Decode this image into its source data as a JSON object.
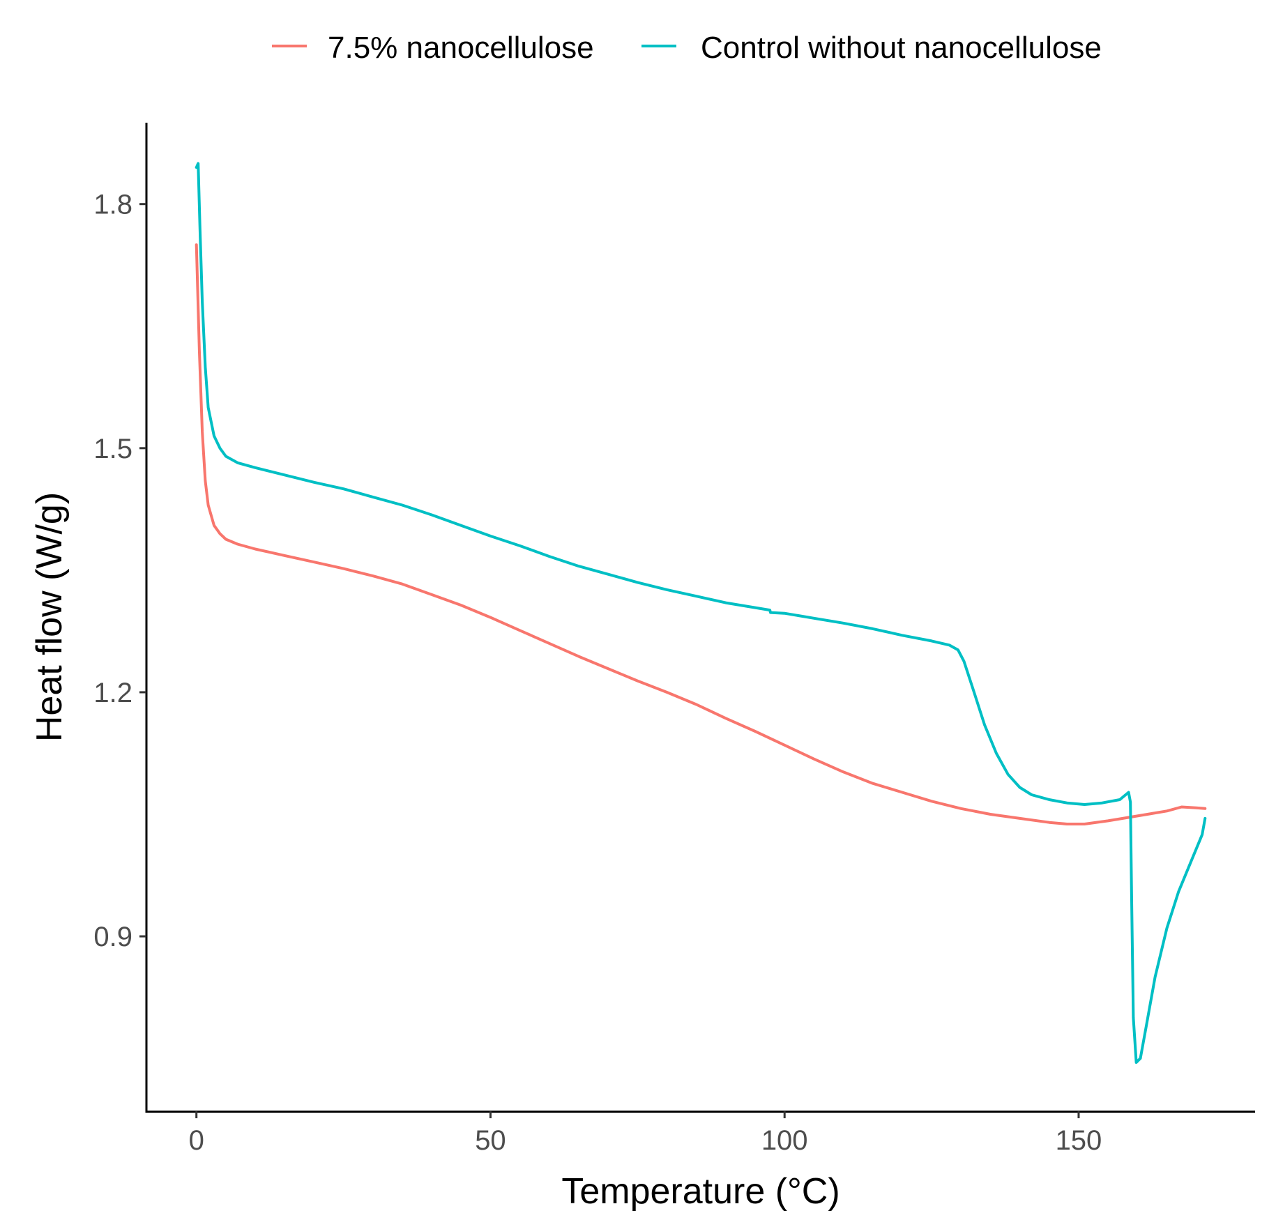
{
  "chart_data": {
    "type": "line",
    "title": "",
    "xlabel": "Temperature (°C)",
    "ylabel": "Heat flow (W/g)",
    "xlim": [
      -8.5,
      180
    ],
    "ylim": [
      0.685,
      1.9
    ],
    "xticks": [
      0,
      50,
      100,
      150
    ],
    "xtick_labels": [
      "0",
      "50",
      "100",
      "150"
    ],
    "yticks": [
      0.9,
      1.2,
      1.5,
      1.8
    ],
    "ytick_labels": [
      "0.9",
      "1.2",
      "1.5",
      "1.8"
    ],
    "grid": false,
    "legend_position": "top",
    "series": [
      {
        "name": "7.5% nanocellulose",
        "color": "#F8766D",
        "x": [
          0,
          0.5,
          1,
          1.5,
          2,
          3,
          4,
          5,
          7,
          10,
          15,
          20,
          25,
          30,
          35,
          40,
          45,
          50,
          55,
          60,
          65,
          70,
          75,
          80,
          85,
          90,
          95,
          100,
          105,
          110,
          115,
          120,
          125,
          130,
          135,
          140,
          145,
          148,
          151,
          155,
          160,
          165,
          167.5,
          170,
          171.5
        ],
        "values": [
          1.75,
          1.62,
          1.52,
          1.46,
          1.43,
          1.405,
          1.395,
          1.388,
          1.382,
          1.376,
          1.368,
          1.36,
          1.352,
          1.343,
          1.333,
          1.32,
          1.307,
          1.292,
          1.276,
          1.26,
          1.244,
          1.229,
          1.214,
          1.2,
          1.185,
          1.168,
          1.152,
          1.135,
          1.118,
          1.102,
          1.088,
          1.077,
          1.066,
          1.057,
          1.05,
          1.045,
          1.04,
          1.038,
          1.038,
          1.042,
          1.048,
          1.054,
          1.059,
          1.058,
          1.057
        ]
      },
      {
        "name": "Control without nanocellulose",
        "color": "#00BFC4",
        "x": [
          0,
          0.3,
          0.6,
          1,
          1.5,
          2,
          3,
          4,
          5,
          7,
          10,
          15,
          20,
          25,
          30,
          35,
          40,
          45,
          50,
          55,
          60,
          65,
          70,
          75,
          80,
          85,
          90,
          95,
          97.5,
          97.6,
          100,
          105,
          110,
          115,
          120,
          125,
          128,
          129.5,
          130.5,
          132,
          134,
          136,
          138,
          140,
          142,
          145,
          148,
          151,
          154,
          157,
          158.5,
          158.8,
          159,
          159.3,
          159.8,
          160.5,
          161.5,
          163,
          165,
          167,
          169,
          171,
          171.5
        ],
        "values": [
          1.845,
          1.85,
          1.77,
          1.68,
          1.6,
          1.55,
          1.515,
          1.5,
          1.49,
          1.482,
          1.476,
          1.467,
          1.458,
          1.45,
          1.44,
          1.43,
          1.418,
          1.405,
          1.392,
          1.38,
          1.367,
          1.355,
          1.345,
          1.335,
          1.326,
          1.318,
          1.31,
          1.304,
          1.301,
          1.298,
          1.297,
          1.291,
          1.285,
          1.278,
          1.27,
          1.263,
          1.258,
          1.252,
          1.238,
          1.205,
          1.16,
          1.125,
          1.099,
          1.083,
          1.074,
          1.068,
          1.064,
          1.062,
          1.064,
          1.068,
          1.077,
          1.065,
          0.95,
          0.8,
          0.745,
          0.75,
          0.79,
          0.85,
          0.91,
          0.955,
          0.99,
          1.025,
          1.045
        ]
      }
    ]
  }
}
